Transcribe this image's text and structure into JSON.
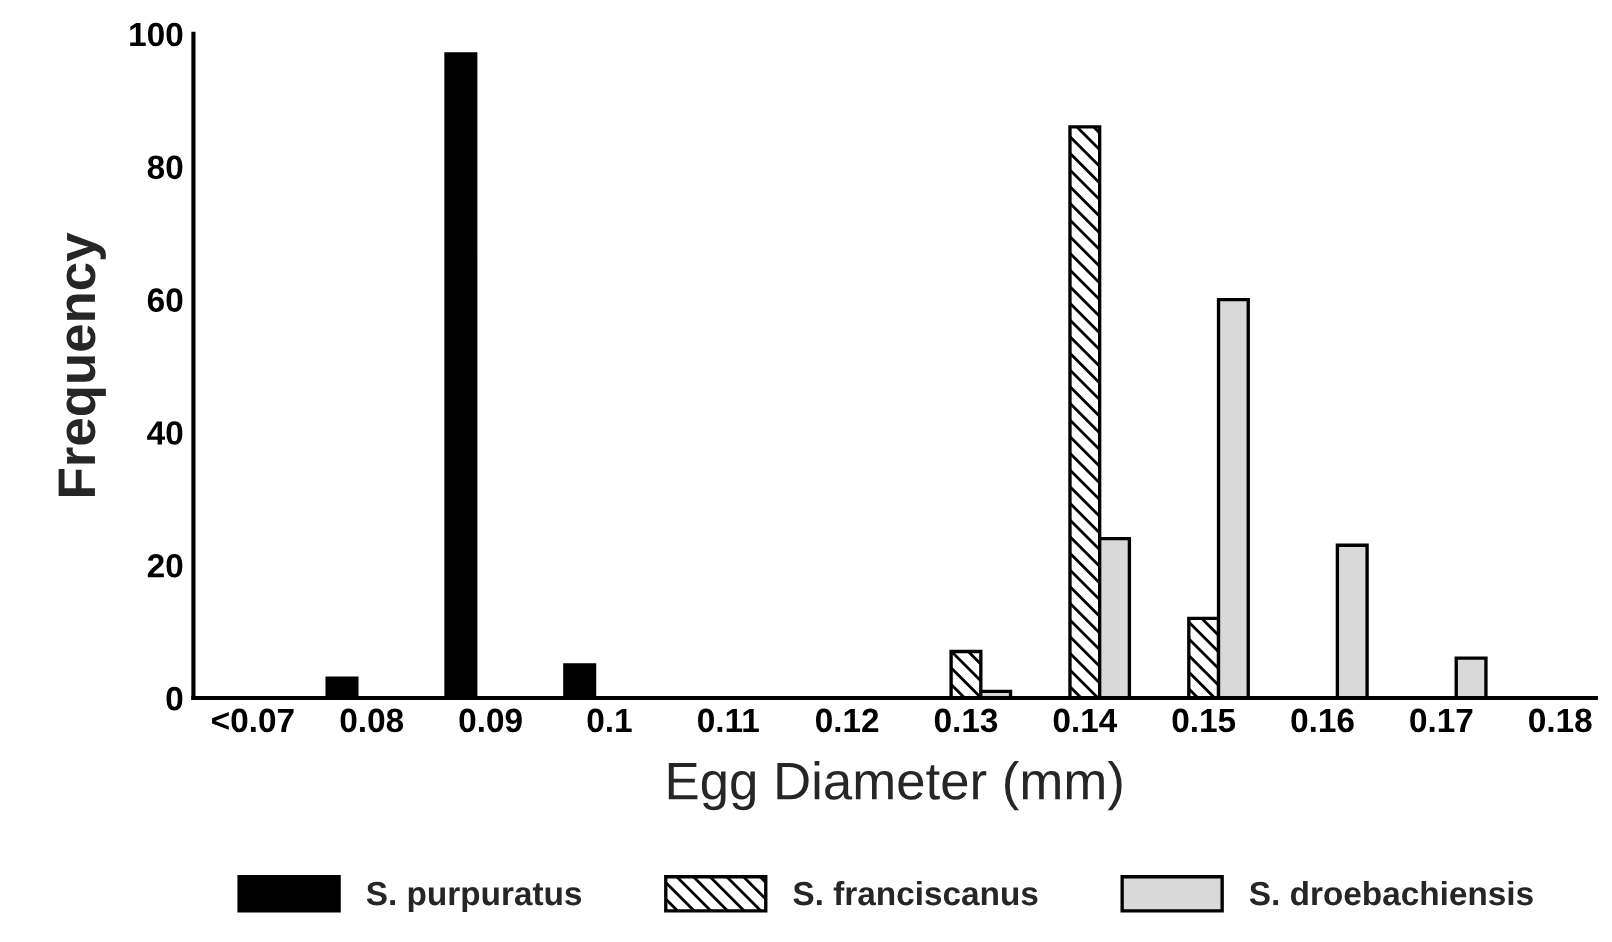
{
  "chart_data": {
    "type": "bar",
    "xlabel": "Egg Diameter (mm)",
    "ylabel": "Frequency",
    "categories": [
      "<0.07",
      "0.08",
      "0.09",
      "0.1",
      "0.11",
      "0.12",
      "0.13",
      "0.14",
      "0.15",
      "0.16",
      "0.17",
      "0.18"
    ],
    "series": [
      {
        "name": "S. purpuratus",
        "color": "#000000",
        "values": [
          null,
          3,
          97,
          5,
          null,
          null,
          null,
          null,
          null,
          null,
          null,
          null
        ]
      },
      {
        "name": "S. franciscanus",
        "color": "#000000",
        "values": [
          null,
          null,
          null,
          null,
          null,
          null,
          7,
          86,
          12,
          null,
          null,
          null
        ]
      },
      {
        "name": "S. droebachiensis",
        "color": "#d9d9d9",
        "values": [
          null,
          null,
          null,
          null,
          null,
          null,
          1,
          24,
          60,
          23,
          6,
          null
        ]
      }
    ],
    "ylim": [
      0,
      100
    ],
    "yticks": [
      0,
      20,
      40,
      60,
      80,
      100
    ],
    "grid": false,
    "legend": "bottom"
  }
}
